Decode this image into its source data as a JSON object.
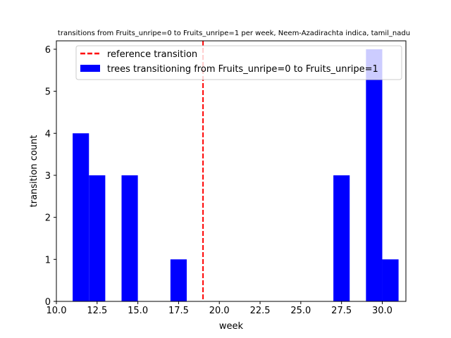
{
  "chart_data": {
    "type": "bar",
    "title": "transitions from Fruits_unripe=0 to Fruits_unripe=1 per week, Neem-Azadirachta indica, tamil_nadu",
    "xlabel": "week",
    "ylabel": "transition count",
    "xlim": [
      10.0,
      31.45
    ],
    "ylim": [
      0,
      6.2
    ],
    "xticks": [
      "10.0",
      "12.5",
      "15.0",
      "17.5",
      "20.0",
      "22.5",
      "25.0",
      "27.5",
      "30.0"
    ],
    "yticks": [
      "0",
      "1",
      "2",
      "3",
      "4",
      "5",
      "6"
    ],
    "grid": false,
    "legend_position": "top-right",
    "bar_width": 1.0,
    "series": [
      {
        "name": "trees transitioning from Fruits_unripe=0 to Fruits_unripe=1",
        "color": "#0000ff",
        "bars": [
          {
            "x": 11,
            "value": 4
          },
          {
            "x": 12,
            "value": 3
          },
          {
            "x": 14,
            "value": 3
          },
          {
            "x": 17,
            "value": 1
          },
          {
            "x": 27,
            "value": 3
          },
          {
            "x": 29,
            "value": 6
          },
          {
            "x": 30,
            "value": 1
          }
        ]
      }
    ],
    "reference_line": {
      "name": "reference transition",
      "x": 19,
      "color": "#ff0000",
      "style": "dashed"
    }
  }
}
